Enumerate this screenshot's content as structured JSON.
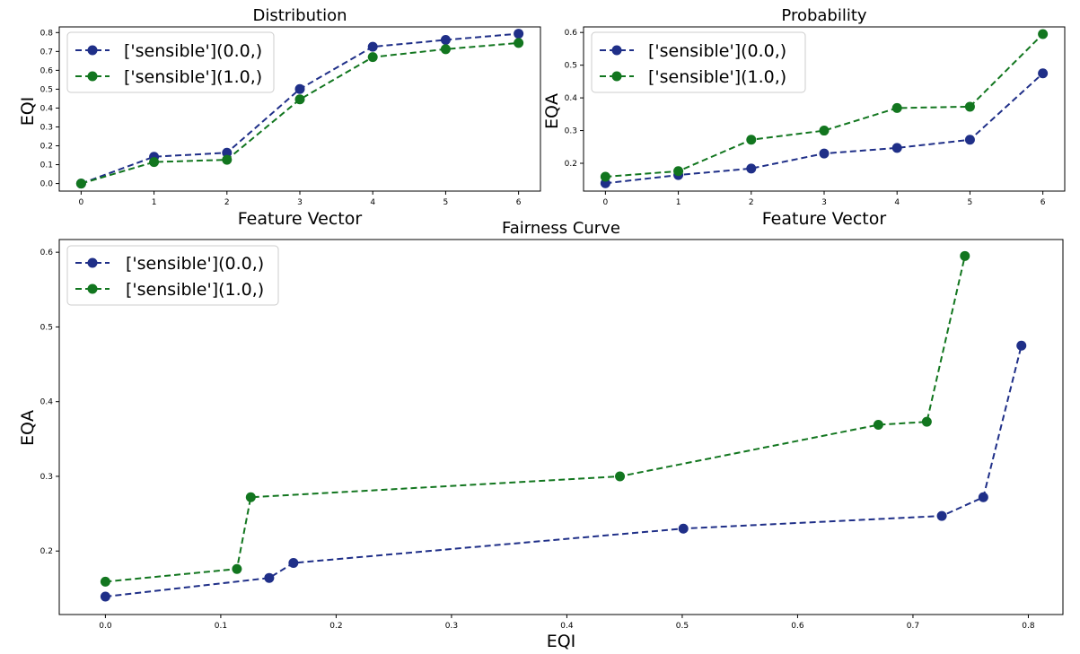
{
  "chart_data": [
    {
      "type": "line",
      "title": "Distribution",
      "xlabel": "Feature Vector",
      "ylabel": "EQI",
      "xlim": [
        -0.3,
        6.3
      ],
      "ylim": [
        -0.04,
        0.83
      ],
      "xticks": [
        0,
        1,
        2,
        3,
        4,
        5,
        6
      ],
      "yticks": [
        0.0,
        0.1,
        0.2,
        0.3,
        0.4,
        0.5,
        0.6,
        0.7,
        0.8
      ],
      "tick_labels_y": [
        "0.0",
        "0.1",
        "0.2",
        "0.3",
        "0.4",
        "0.5",
        "0.6",
        "0.7",
        "0.8"
      ],
      "tick_labels_x": [
        "0",
        "1",
        "2",
        "3",
        "4",
        "5",
        "6"
      ],
      "legend": "upper left",
      "grid": false,
      "series": [
        {
          "name": "['sensible'](0.0,)",
          "color": "#1f2f88",
          "x": [
            0,
            1,
            2,
            3,
            4,
            5,
            6
          ],
          "y": [
            0.0,
            0.142,
            0.163,
            0.501,
            0.725,
            0.761,
            0.794
          ]
        },
        {
          "name": "['sensible'](1.0,)",
          "color": "#12761f",
          "x": [
            0,
            1,
            2,
            3,
            4,
            5,
            6
          ],
          "y": [
            0.0,
            0.114,
            0.126,
            0.446,
            0.67,
            0.712,
            0.745
          ]
        }
      ]
    },
    {
      "type": "line",
      "title": "Probability",
      "xlabel": "Feature Vector",
      "ylabel": "EQA",
      "xlim": [
        -0.3,
        6.3
      ],
      "ylim": [
        0.115,
        0.617
      ],
      "xticks": [
        0,
        1,
        2,
        3,
        4,
        5,
        6
      ],
      "yticks": [
        0.2,
        0.3,
        0.4,
        0.5,
        0.6
      ],
      "tick_labels_y": [
        "0.2",
        "0.3",
        "0.4",
        "0.5",
        "0.6"
      ],
      "tick_labels_x": [
        "0",
        "1",
        "2",
        "3",
        "4",
        "5",
        "6"
      ],
      "legend": "upper left",
      "grid": false,
      "series": [
        {
          "name": "['sensible'](0.0,)",
          "color": "#1f2f88",
          "x": [
            0,
            1,
            2,
            3,
            4,
            5,
            6
          ],
          "y": [
            0.139,
            0.164,
            0.184,
            0.23,
            0.247,
            0.272,
            0.475
          ]
        },
        {
          "name": "['sensible'](1.0,)",
          "color": "#12761f",
          "x": [
            0,
            1,
            2,
            3,
            4,
            5,
            6
          ],
          "y": [
            0.159,
            0.176,
            0.272,
            0.3,
            0.369,
            0.373,
            0.595
          ]
        }
      ]
    },
    {
      "type": "line",
      "title": "Fairness Curve",
      "xlabel": "EQI",
      "ylabel": "EQA",
      "xlim": [
        -0.04,
        0.83
      ],
      "ylim": [
        0.115,
        0.617
      ],
      "xticks": [
        0.0,
        0.1,
        0.2,
        0.3,
        0.4,
        0.5,
        0.6,
        0.7,
        0.8
      ],
      "yticks": [
        0.2,
        0.3,
        0.4,
        0.5,
        0.6
      ],
      "tick_labels_x": [
        "0.0",
        "0.1",
        "0.2",
        "0.3",
        "0.4",
        "0.5",
        "0.6",
        "0.7",
        "0.8"
      ],
      "tick_labels_y": [
        "0.2",
        "0.3",
        "0.4",
        "0.5",
        "0.6"
      ],
      "legend": "upper left",
      "grid": false,
      "series": [
        {
          "name": "['sensible'](0.0,)",
          "color": "#1f2f88",
          "x": [
            0.0,
            0.142,
            0.163,
            0.501,
            0.725,
            0.761,
            0.794
          ],
          "y": [
            0.139,
            0.164,
            0.184,
            0.23,
            0.247,
            0.272,
            0.475
          ]
        },
        {
          "name": "['sensible'](1.0,)",
          "color": "#12761f",
          "x": [
            0.0,
            0.114,
            0.126,
            0.446,
            0.67,
            0.712,
            0.745
          ],
          "y": [
            0.159,
            0.176,
            0.272,
            0.3,
            0.369,
            0.373,
            0.595
          ]
        }
      ]
    }
  ]
}
